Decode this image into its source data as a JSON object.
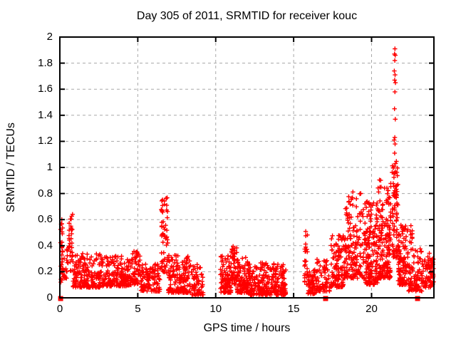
{
  "page": {
    "title": "Day 305 of 2011, SRMTID for receiver kouc"
  },
  "chart_data": {
    "type": "scatter",
    "title": "Day 305 of 2011, SRMTID for receiver kouc",
    "xlabel": "GPS time / hours",
    "ylabel": "SRMTID / TECUs",
    "xlim": [
      0,
      24
    ],
    "ylim": [
      0,
      2
    ],
    "xticks": {
      "values": [
        0,
        5,
        10,
        15,
        20
      ],
      "labels": [
        "0",
        "5",
        "10",
        "15",
        "20"
      ]
    },
    "yticks": {
      "values": [
        0,
        0.2,
        0.4,
        0.6,
        0.8,
        1,
        1.2,
        1.4,
        1.6,
        1.8,
        2
      ],
      "labels": [
        "0",
        "0.2",
        "0.4",
        "0.6",
        "0.8",
        "1",
        "1.2",
        "1.4",
        "1.6",
        "1.8",
        "2"
      ]
    },
    "grid": true,
    "legend": "none",
    "marker": {
      "glyph": "plus",
      "color": "#ff0000",
      "size": 7
    },
    "grid_color": "#a8a8a8",
    "border_color": "#000000",
    "zero_markers": {
      "glyph": "filled-square",
      "color": "#ff0000",
      "y": 0,
      "x": [
        0.05,
        17.05,
        22.95
      ]
    },
    "spike_points": [
      [
        21.5,
        1.91
      ],
      [
        21.47,
        1.87
      ],
      [
        21.52,
        1.86
      ],
      [
        21.49,
        1.82
      ],
      [
        21.46,
        1.74
      ],
      [
        21.51,
        1.71
      ],
      [
        21.48,
        1.67
      ],
      [
        21.53,
        1.65
      ],
      [
        21.5,
        1.58
      ],
      [
        21.47,
        1.45
      ],
      [
        21.52,
        1.37
      ],
      [
        21.49,
        1.23
      ],
      [
        21.45,
        1.21
      ],
      [
        21.51,
        1.18
      ],
      [
        21.48,
        1.11
      ],
      [
        21.54,
        1.03
      ],
      [
        21.5,
        0.96
      ]
    ],
    "cluster_fields": [
      "x_start",
      "x_end",
      "y_min",
      "y_max",
      "n_points",
      "bottom_bias",
      "sub_columns"
    ],
    "clusters": [
      [
        0.05,
        0.18,
        0.25,
        0.62,
        18,
        1.0,
        2
      ],
      [
        0.05,
        0.2,
        0.1,
        0.26,
        8,
        1.0,
        0
      ],
      [
        0.2,
        0.55,
        0.14,
        0.38,
        22,
        1.4,
        0
      ],
      [
        0.55,
        0.85,
        0.2,
        0.66,
        34,
        1.0,
        2
      ],
      [
        0.85,
        2.6,
        0.08,
        0.34,
        180,
        1.9,
        0
      ],
      [
        2.6,
        4.6,
        0.09,
        0.32,
        190,
        1.8,
        0
      ],
      [
        4.6,
        5.15,
        0.1,
        0.36,
        60,
        1.5,
        0
      ],
      [
        5.15,
        6.45,
        0.05,
        0.26,
        115,
        1.6,
        0
      ],
      [
        6.5,
        6.95,
        0.18,
        0.77,
        55,
        1.1,
        3
      ],
      [
        6.95,
        8.35,
        0.04,
        0.33,
        165,
        1.8,
        0
      ],
      [
        8.35,
        9.2,
        0.02,
        0.26,
        70,
        1.6,
        0
      ],
      [
        10.3,
        11.0,
        0.04,
        0.33,
        100,
        1.7,
        0
      ],
      [
        11.0,
        11.35,
        0.1,
        0.42,
        45,
        1.3,
        0
      ],
      [
        11.35,
        12.15,
        0.04,
        0.31,
        110,
        1.7,
        0
      ],
      [
        12.15,
        14.5,
        0.02,
        0.27,
        265,
        1.8,
        0
      ],
      [
        15.65,
        15.9,
        0.1,
        0.52,
        26,
        1.1,
        1
      ],
      [
        15.9,
        16.45,
        0.03,
        0.22,
        62,
        1.5,
        0
      ],
      [
        16.45,
        17.35,
        0.05,
        0.3,
        70,
        1.6,
        0
      ],
      [
        17.4,
        18.2,
        0.08,
        0.48,
        110,
        1.5,
        0
      ],
      [
        18.2,
        19.6,
        0.15,
        0.82,
        175,
        1.7,
        6
      ],
      [
        19.6,
        20.4,
        0.1,
        0.76,
        150,
        1.8,
        5
      ],
      [
        20.4,
        21.25,
        0.15,
        0.92,
        175,
        1.7,
        5
      ],
      [
        21.3,
        21.7,
        0.3,
        1.05,
        70,
        1.4,
        2
      ],
      [
        21.7,
        22.35,
        0.1,
        0.56,
        110,
        1.6,
        3
      ],
      [
        22.45,
        22.65,
        0.42,
        0.58,
        10,
        1.0,
        1
      ],
      [
        22.35,
        23.3,
        0.05,
        0.38,
        90,
        1.6,
        0
      ],
      [
        23.3,
        24.0,
        0.08,
        0.35,
        80,
        1.5,
        0
      ]
    ],
    "seed": 305
  }
}
